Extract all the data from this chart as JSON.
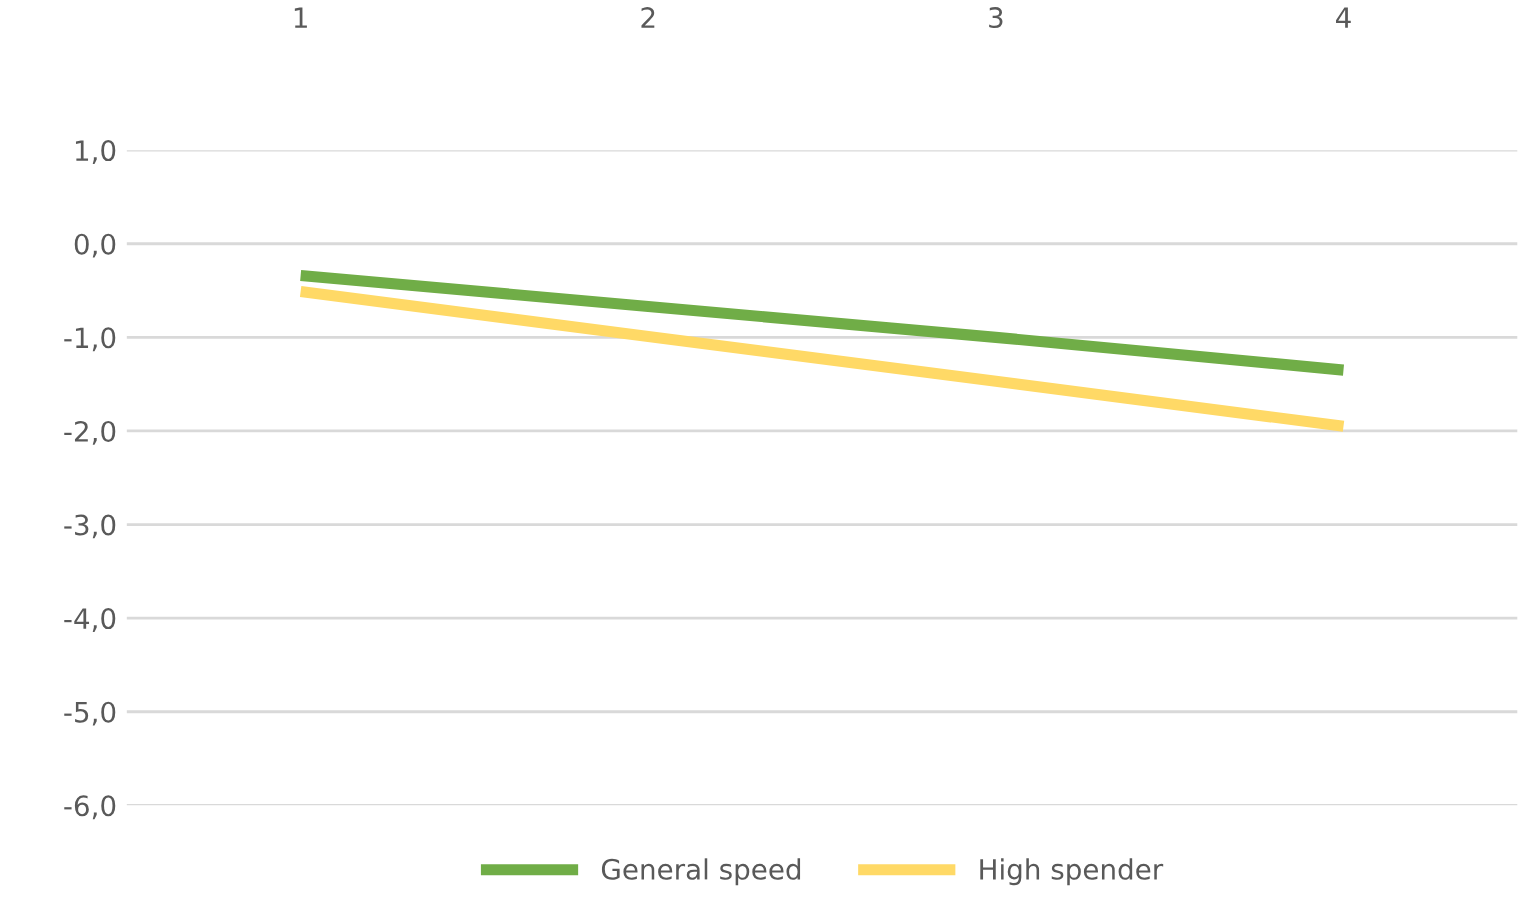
{
  "chart_data": {
    "type": "line",
    "categories": [
      "1",
      "2",
      "3",
      "4"
    ],
    "series": [
      {
        "name": "General speed",
        "color": "#70ad47",
        "values": [
          -0.34,
          -0.67,
          -1.0,
          -1.35
        ]
      },
      {
        "name": "High spender",
        "color": "#ffd966",
        "values": [
          -0.51,
          -0.99,
          -1.47,
          -1.95
        ]
      }
    ],
    "ylim": [
      -6,
      1
    ],
    "yticks": [
      {
        "value": 1,
        "label": "1,0"
      },
      {
        "value": 0,
        "label": "0,0"
      },
      {
        "value": -1,
        "label": "-1,0"
      },
      {
        "value": -2,
        "label": "-2,0"
      },
      {
        "value": -3,
        "label": "-3,0"
      },
      {
        "value": -4,
        "label": "-4,0"
      },
      {
        "value": -5,
        "label": "-5,0"
      },
      {
        "value": -6,
        "label": "-6,0"
      }
    ],
    "grid": "y",
    "legend": "bottom",
    "marker": "none",
    "line_style": "solid"
  }
}
